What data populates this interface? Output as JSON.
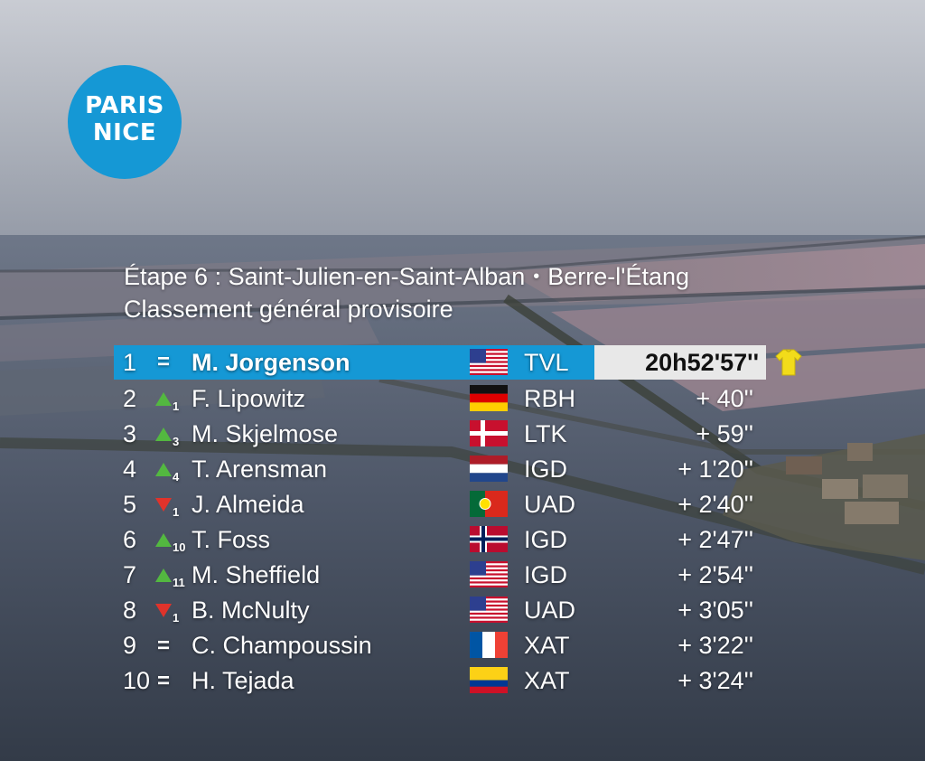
{
  "logo": {
    "line1": "PARIS",
    "line2": "NICE"
  },
  "header": {
    "stage_route_start": "Étape 6 : Saint-Julien-en-Saint-Alban",
    "separator": "•",
    "stage_route_end": "Berre-l'Étang",
    "classification": "Classement général provisoire"
  },
  "standings": [
    {
      "pos": "1",
      "change": "=",
      "trend": "same",
      "places": "",
      "name": "M. Jorgenson",
      "flag": "usa",
      "team": "TVL",
      "time": "20h52'57''",
      "leader_jersey": "yellow-jersey-icon"
    },
    {
      "pos": "2",
      "change": "",
      "trend": "up",
      "places": "1",
      "name": "F. Lipowitz",
      "flag": "germany",
      "team": "RBH",
      "time": "+ 40''"
    },
    {
      "pos": "3",
      "change": "",
      "trend": "up",
      "places": "3",
      "name": "M. Skjelmose",
      "flag": "denmark",
      "team": "LTK",
      "time": "+ 59''"
    },
    {
      "pos": "4",
      "change": "",
      "trend": "up",
      "places": "4",
      "name": "T. Arensman",
      "flag": "netherlands",
      "team": "IGD",
      "time": "+ 1'20''"
    },
    {
      "pos": "5",
      "change": "",
      "trend": "down",
      "places": "1",
      "name": "J. Almeida",
      "flag": "portugal",
      "team": "UAD",
      "time": "+ 2'40''"
    },
    {
      "pos": "6",
      "change": "",
      "trend": "up",
      "places": "10",
      "name": "T. Foss",
      "flag": "norway",
      "team": "IGD",
      "time": "+ 2'47''"
    },
    {
      "pos": "7",
      "change": "",
      "trend": "up",
      "places": "11",
      "name": "M. Sheffield",
      "flag": "usa",
      "team": "IGD",
      "time": "+ 2'54''"
    },
    {
      "pos": "8",
      "change": "",
      "trend": "down",
      "places": "1",
      "name": "B. McNulty",
      "flag": "usa",
      "team": "UAD",
      "time": "+ 3'05''"
    },
    {
      "pos": "9",
      "change": "=",
      "trend": "same",
      "places": "",
      "name": "C. Champoussin",
      "flag": "france",
      "team": "XAT",
      "time": "+ 3'22''"
    },
    {
      "pos": "10",
      "change": "=",
      "trend": "same",
      "places": "",
      "name": "H. Tejada",
      "flag": "colombia",
      "team": "XAT",
      "time": "+ 3'24''"
    }
  ],
  "colors": {
    "logo_blue": "#1598d5",
    "leader_bar": "#1598d5",
    "time_box": "#e8e8e8",
    "up_arrow": "#53b840",
    "down_arrow": "#e0332b",
    "jersey": "#f2dc1a"
  }
}
